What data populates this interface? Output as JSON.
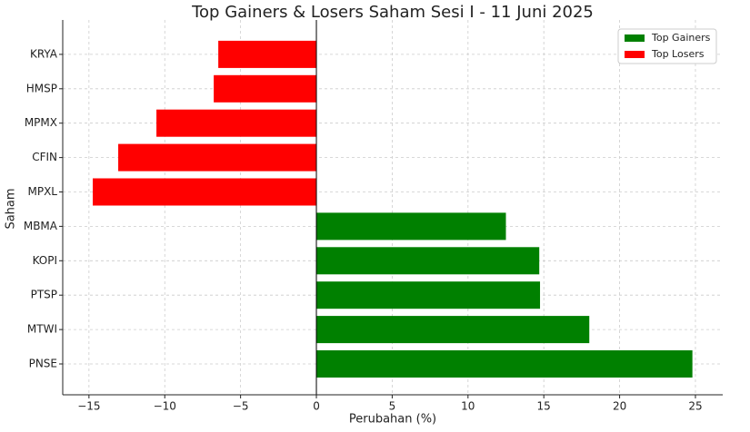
{
  "chart_data": {
    "type": "barh",
    "title": "Top Gainers & Losers Saham Sesi I - 11 Juni 2025",
    "x_label": "Perubahan (%)",
    "y_label": "Saham",
    "categories": [
      "PNSE",
      "MTWI",
      "PTSP",
      "KOPI",
      "MBMA",
      "MPXL",
      "CFIN",
      "MPMX",
      "HMSP",
      "KRYA"
    ],
    "series": [
      {
        "name": "Top Gainers",
        "color": "#008000",
        "values": [
          24.8,
          18.0,
          14.75,
          14.7,
          12.5,
          null,
          null,
          null,
          null,
          null
        ]
      },
      {
        "name": "Top Losers",
        "color": "#ff0000",
        "values": [
          null,
          null,
          null,
          null,
          null,
          -14.75,
          -13.07,
          -10.55,
          -6.77,
          -6.47
        ]
      }
    ],
    "xlim": [
      -16.73,
      26.8
    ],
    "xticks": [
      {
        "value": -15,
        "label": "−15"
      },
      {
        "value": -10,
        "label": "−10"
      },
      {
        "value": -5,
        "label": "−5"
      },
      0,
      5,
      10,
      15,
      20,
      25
    ],
    "grid": true,
    "legend": "upper right"
  }
}
